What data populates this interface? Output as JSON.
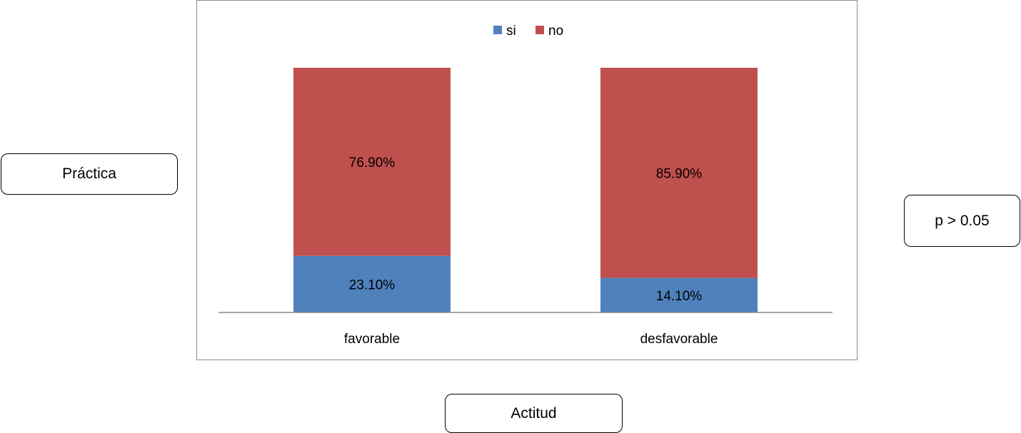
{
  "annotations": {
    "y_box": "Práctica",
    "x_box": "Actitud",
    "p_value": "p > 0.05"
  },
  "chart_data": {
    "type": "bar",
    "stacked": true,
    "categories": [
      "favorable",
      "desfavorable"
    ],
    "series": [
      {
        "name": "si",
        "values": [
          23.1,
          14.1
        ],
        "labels": [
          "23.10%",
          "14.10%"
        ],
        "color": "#4F81BD"
      },
      {
        "name": "no",
        "values": [
          76.9,
          85.9
        ],
        "labels": [
          "76.90%",
          "85.90%"
        ],
        "color": "#C0504D"
      }
    ],
    "ylim": [
      0,
      100
    ],
    "grid": false,
    "legend_position": "top"
  }
}
